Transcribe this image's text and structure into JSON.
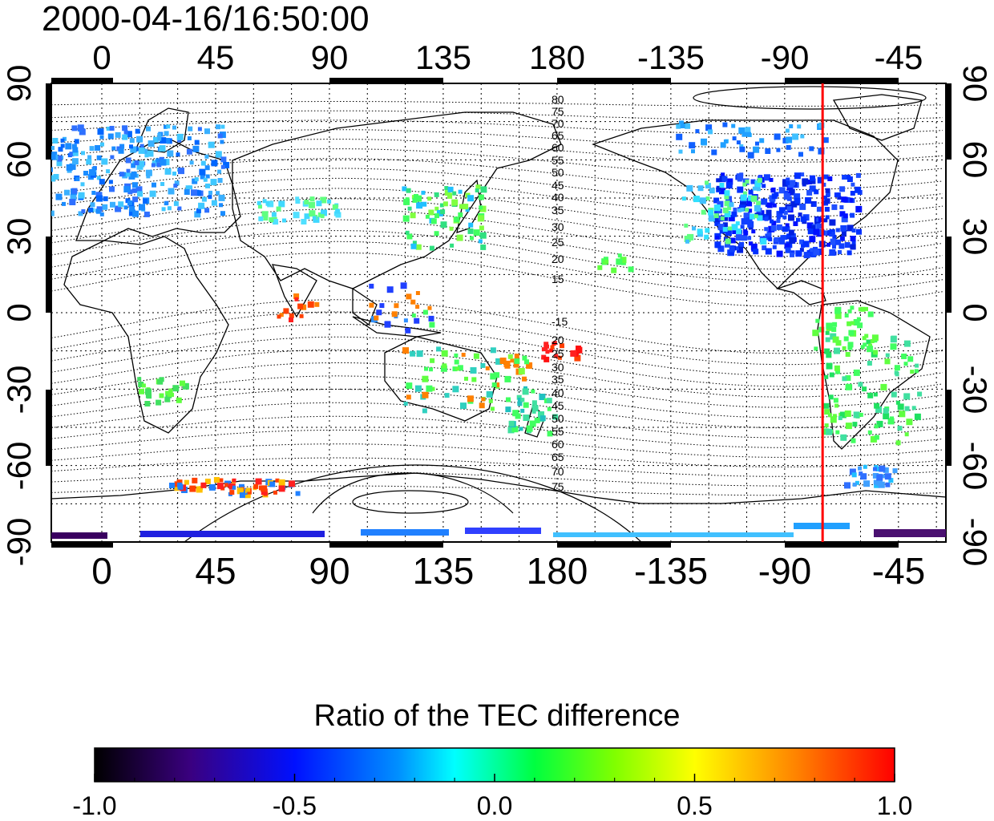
{
  "timestamp": "2000-04-16/16:50:00",
  "map": {
    "top_lon_labels": [
      "0",
      "45",
      "90",
      "135",
      "180",
      "-135",
      "-90",
      "-45"
    ],
    "bottom_lon_labels": [
      "0",
      "45",
      "90",
      "135",
      "180",
      "-135",
      "-90",
      "-45"
    ],
    "left_lat_labels": [
      "90",
      "60",
      "30",
      "0",
      "-30",
      "-60",
      "-90"
    ],
    "right_lat_labels": [
      "90",
      "60",
      "30",
      "0",
      "-30",
      "-60",
      "-90"
    ],
    "contour_labels_north": [
      "80",
      "75",
      "70",
      "65",
      "60",
      "55",
      "50",
      "45",
      "40",
      "35",
      "30",
      "25",
      "20",
      "15"
    ],
    "contour_labels_south": [
      "-15",
      "20",
      "25",
      "30",
      "35",
      "40",
      "45",
      "50",
      "55",
      "60",
      "65",
      "70",
      "75"
    ],
    "marker_longitude": -75,
    "marker_color": "#ff0000"
  },
  "colorbar": {
    "title": "Ratio of the TEC difference",
    "tick_labels": [
      "-1.0",
      "-0.5",
      "0.0",
      "0.5",
      "1.0"
    ],
    "colors": [
      "#000000",
      "#400080",
      "#0000ff",
      "#00a0ff",
      "#00ffff",
      "#00ff40",
      "#80ff00",
      "#ffff00",
      "#ff8000",
      "#ff0000"
    ]
  },
  "legend": {
    "xlabel": "",
    "ylabel": ""
  }
}
